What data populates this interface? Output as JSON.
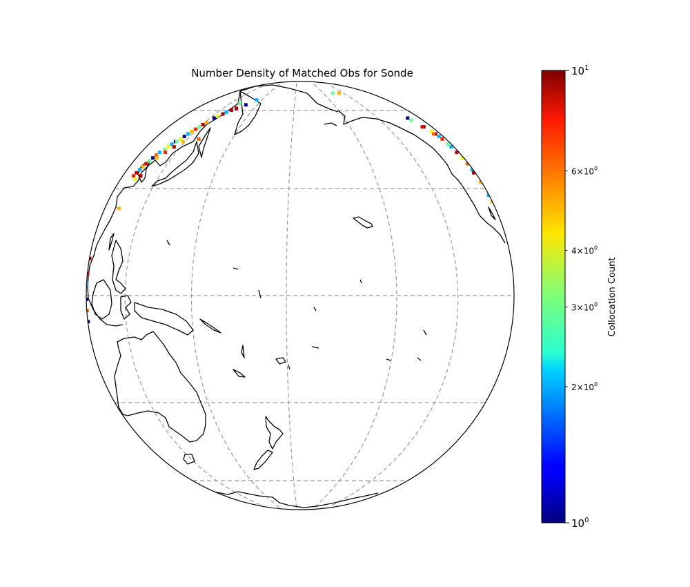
{
  "title": "Number Density of Matched Obs for Sonde",
  "projection": "orthographic",
  "map_center": {
    "lat": 0,
    "lon": 180
  },
  "graticule": {
    "latitudes": [
      -60,
      -30,
      0,
      30,
      60
    ],
    "longitudes": [
      120,
      150,
      180,
      210,
      240
    ],
    "color": "#999999",
    "style": "dashed"
  },
  "colorbar": {
    "label": "Collocation Count",
    "colormap": "jet",
    "scale": "log",
    "range": [
      1,
      10
    ],
    "ticks": [
      {
        "value": 1,
        "base": "10",
        "exp": "0",
        "major": true
      },
      {
        "value": 2,
        "base": "2×10",
        "exp": "0",
        "major": false
      },
      {
        "value": 3,
        "base": "3×10",
        "exp": "0",
        "major": false
      },
      {
        "value": 4,
        "base": "4×10",
        "exp": "0",
        "major": false
      },
      {
        "value": 6,
        "base": "6×10",
        "exp": "0",
        "major": false
      },
      {
        "value": 10,
        "base": "10",
        "exp": "1",
        "major": true
      }
    ]
  },
  "observations": [
    {
      "lon": 111,
      "lat": 35,
      "count": 9
    },
    {
      "lon": 112,
      "lat": 36,
      "count": 2
    },
    {
      "lon": 113,
      "lat": 37,
      "count": 5
    },
    {
      "lon": 114,
      "lat": 38,
      "count": 8
    },
    {
      "lon": 115,
      "lat": 39,
      "count": 3
    },
    {
      "lon": 116,
      "lat": 40,
      "count": 1
    },
    {
      "lon": 117,
      "lat": 41,
      "count": 6
    },
    {
      "lon": 118,
      "lat": 42,
      "count": 2
    },
    {
      "lon": 120,
      "lat": 43,
      "count": 3
    },
    {
      "lon": 121,
      "lat": 44,
      "count": 4
    },
    {
      "lon": 122,
      "lat": 45,
      "count": 2
    },
    {
      "lon": 123,
      "lat": 46,
      "count": 1
    },
    {
      "lon": 124,
      "lat": 46,
      "count": 3
    },
    {
      "lon": 125,
      "lat": 47,
      "count": 4
    },
    {
      "lon": 126,
      "lat": 48,
      "count": 1
    },
    {
      "lon": 127,
      "lat": 49,
      "count": 2
    },
    {
      "lon": 128,
      "lat": 50,
      "count": 5
    },
    {
      "lon": 129,
      "lat": 51,
      "count": 7
    },
    {
      "lon": 130,
      "lat": 52,
      "count": 3
    },
    {
      "lon": 131,
      "lat": 53,
      "count": 9
    },
    {
      "lon": 132,
      "lat": 54,
      "count": 5
    },
    {
      "lon": 134,
      "lat": 56,
      "count": 1
    },
    {
      "lon": 135,
      "lat": 57,
      "count": 4
    },
    {
      "lon": 137,
      "lat": 58,
      "count": 9
    },
    {
      "lon": 138,
      "lat": 59,
      "count": 2
    },
    {
      "lon": 140,
      "lat": 60,
      "count": 9
    },
    {
      "lon": 142,
      "lat": 61,
      "count": 9
    },
    {
      "lon": 146,
      "lat": 63,
      "count": 1
    },
    {
      "lon": 110,
      "lat": 34,
      "count": 7
    },
    {
      "lon": 113,
      "lat": 33,
      "count": 4
    },
    {
      "lon": 116,
      "lat": 34,
      "count": 9
    },
    {
      "lon": 119,
      "lat": 40,
      "count": 5
    },
    {
      "lon": 122,
      "lat": 42,
      "count": 7
    },
    {
      "lon": 125,
      "lat": 44,
      "count": 9
    },
    {
      "lon": 128,
      "lat": 46,
      "count": 5
    },
    {
      "lon": 112,
      "lat": 24,
      "count": 5
    },
    {
      "lon": 93,
      "lat": 10,
      "count": 9
    },
    {
      "lon": 93,
      "lat": 6,
      "count": 8
    },
    {
      "lon": 93,
      "lat": 3,
      "count": 2
    },
    {
      "lon": 93,
      "lat": -1,
      "count": 1
    },
    {
      "lon": 93,
      "lat": -4,
      "count": 6
    },
    {
      "lon": 93,
      "lat": -7,
      "count": 1
    },
    {
      "lon": 136,
      "lat": 47,
      "count": 6
    },
    {
      "lon": 244,
      "lat": 56,
      "count": 1
    },
    {
      "lon": 245,
      "lat": 55,
      "count": 3
    },
    {
      "lon": 250,
      "lat": 52,
      "count": 9
    },
    {
      "lon": 253,
      "lat": 50,
      "count": 4
    },
    {
      "lon": 255,
      "lat": 49,
      "count": 9
    },
    {
      "lon": 256,
      "lat": 48,
      "count": 2
    },
    {
      "lon": 257,
      "lat": 47,
      "count": 7
    },
    {
      "lon": 258,
      "lat": 45,
      "count": 3
    },
    {
      "lon": 259,
      "lat": 44,
      "count": 2
    },
    {
      "lon": 260,
      "lat": 42,
      "count": 9
    },
    {
      "lon": 262,
      "lat": 40,
      "count": 4
    },
    {
      "lon": 263,
      "lat": 38,
      "count": 6
    },
    {
      "lon": 264,
      "lat": 36,
      "count": 2
    },
    {
      "lon": 262,
      "lat": 35,
      "count": 9
    },
    {
      "lon": 264,
      "lat": 32,
      "count": 5
    },
    {
      "lon": 252,
      "lat": 49,
      "count": 6
    },
    {
      "lon": 248,
      "lat": 52,
      "count": 8
    },
    {
      "lon": 266,
      "lat": 28,
      "count": 2
    },
    {
      "lon": 267,
      "lat": 26,
      "count": 5
    },
    {
      "lon": 214,
      "lat": 71,
      "count": 5
    },
    {
      "lon": 208,
      "lat": 71,
      "count": 3
    },
    {
      "lon": 150,
      "lat": 66,
      "count": 2
    },
    {
      "lon": 140,
      "lat": 64,
      "count": 3
    }
  ]
}
